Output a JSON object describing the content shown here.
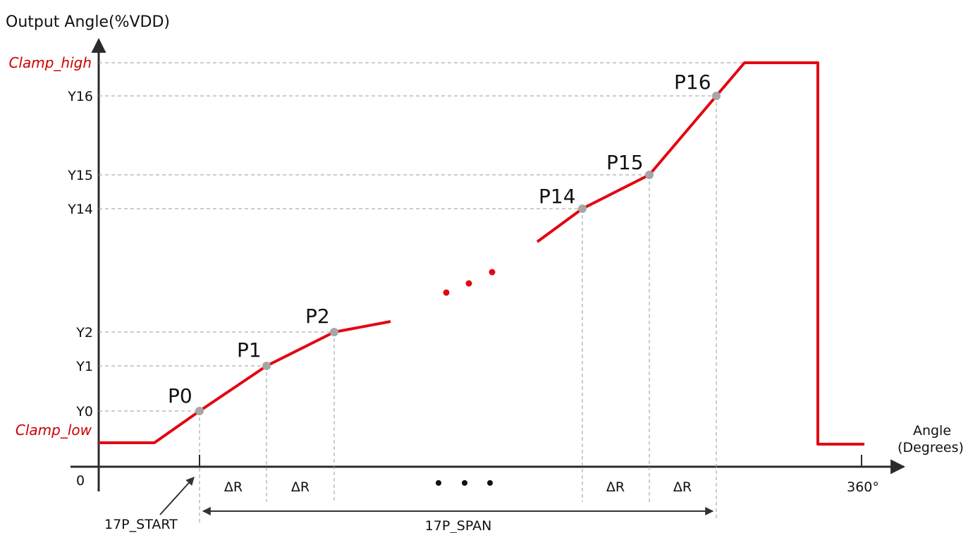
{
  "y_axis": {
    "title": "Output Angle(%VDD)"
  },
  "x_axis": {
    "title_line1": "Angle",
    "title_line2": "(Degrees)",
    "origin": "0",
    "end_tick": "360°"
  },
  "y_levels": {
    "clamp_high": "Clamp_high",
    "y16": "Y16",
    "y15": "Y15",
    "y14": "Y14",
    "y2": "Y2",
    "y1": "Y1",
    "y0": "Y0",
    "clamp_low": "Clamp_low"
  },
  "points": {
    "p0": "P0",
    "p1": "P1",
    "p2": "P2",
    "p14": "P14",
    "p15": "P15",
    "p16": "P16"
  },
  "segments": {
    "dr_1": "ΔR",
    "dr_2": "ΔR",
    "dr_3": "ΔR",
    "dr_4": "ΔR"
  },
  "annotations": {
    "start": "17P_START",
    "span": "17P_SPAN"
  },
  "colors": {
    "curve": "#e30613",
    "point": "#a6a6a6",
    "axis": "#2b2b2b",
    "clamp_label": "#cc0000"
  }
}
